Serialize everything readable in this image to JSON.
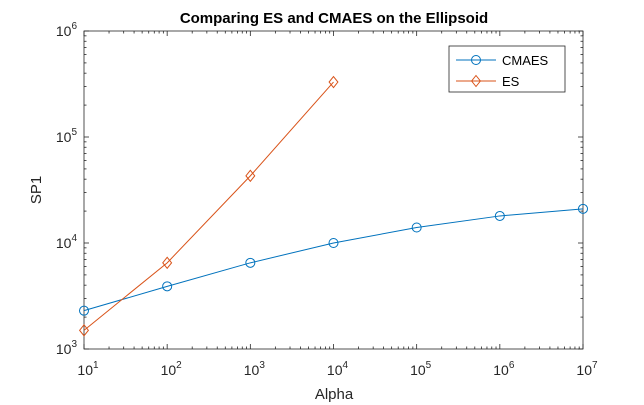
{
  "chart_data": {
    "type": "line",
    "title": "Comparing ES and CMAES on the Ellipsoid",
    "xlabel": "Alpha",
    "ylabel": "SP1",
    "xscale": "log",
    "yscale": "log",
    "xlim": [
      10,
      10000000
    ],
    "ylim": [
      1000,
      1000000
    ],
    "x_ticks": [
      {
        "base": "10",
        "exp": "1"
      },
      {
        "base": "10",
        "exp": "2"
      },
      {
        "base": "10",
        "exp": "3"
      },
      {
        "base": "10",
        "exp": "4"
      },
      {
        "base": "10",
        "exp": "5"
      },
      {
        "base": "10",
        "exp": "6"
      },
      {
        "base": "10",
        "exp": "7"
      }
    ],
    "y_ticks": [
      {
        "base": "10",
        "exp": "3"
      },
      {
        "base": "10",
        "exp": "4"
      },
      {
        "base": "10",
        "exp": "5"
      },
      {
        "base": "10",
        "exp": "6"
      }
    ],
    "grid": false,
    "legend_position": "top-right",
    "series": [
      {
        "name": "CMAES",
        "color": "#0072BD",
        "marker": "circle",
        "x": [
          10,
          100,
          1000,
          10000,
          100000,
          1000000,
          10000000
        ],
        "y": [
          2300,
          3900,
          6500,
          10000,
          14000,
          18000,
          21000
        ]
      },
      {
        "name": "ES",
        "color": "#D95319",
        "marker": "diamond",
        "x": [
          10,
          100,
          1000,
          10000
        ],
        "y": [
          1500,
          6500,
          43000,
          330000
        ]
      }
    ]
  }
}
